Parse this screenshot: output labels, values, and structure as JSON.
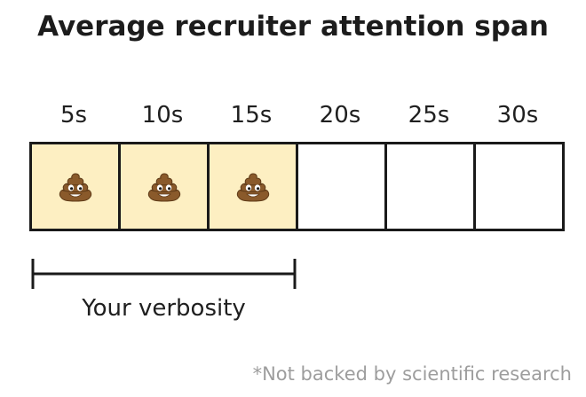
{
  "title": "Average recruiter attention span",
  "ticks": [
    "5s",
    "10s",
    "15s",
    "20s",
    "25s",
    "30s"
  ],
  "segments": [
    {
      "filled": true,
      "icon": "poop-emoji-icon"
    },
    {
      "filled": true,
      "icon": "poop-emoji-icon"
    },
    {
      "filled": true,
      "icon": "poop-emoji-icon"
    },
    {
      "filled": false
    },
    {
      "filled": false
    },
    {
      "filled": false
    }
  ],
  "filled_count": 3,
  "span_label": "Your verbosity",
  "footnote": "*Not backed by scientific research",
  "colors": {
    "filled": "#fdefc2",
    "border": "#1a1a1a",
    "footnote": "#9d9d9d"
  }
}
